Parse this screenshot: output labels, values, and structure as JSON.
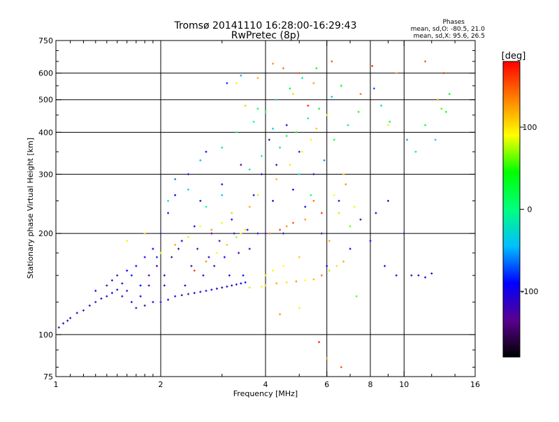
{
  "chart_data": {
    "type": "scatter",
    "title": "Tromsø 20141110 16:28:00-16:29:43",
    "subtitle": "RwPretec (8p)",
    "xlabel": "Frequency [MHz]",
    "ylabel": "Stationary phase Virtual Height [km]",
    "x_scale": "log",
    "y_scale": "log",
    "xlim": [
      1,
      16
    ],
    "ylim": [
      75,
      750
    ],
    "x_ticks": [
      1,
      2,
      4,
      6,
      8,
      10,
      16
    ],
    "x_tick_labels": [
      "1",
      "2",
      "4",
      "6",
      "8",
      "10",
      "16"
    ],
    "x_gridlines": [
      2,
      4,
      6,
      8,
      10
    ],
    "y_ticks": [
      75,
      100,
      200,
      300,
      400,
      500,
      600,
      750
    ],
    "y_tick_labels": [
      "75",
      "100",
      "200",
      "300",
      "400",
      "500",
      "600",
      "750"
    ],
    "y_gridlines": [
      100,
      200,
      300,
      400,
      500,
      600
    ],
    "grid": true,
    "stats": {
      "header": "Phases",
      "line_o": "mean, sd,O: -80.5, 21.0",
      "line_x": "mean, sd,X:  95.6, 26.5"
    },
    "colorbar": {
      "label": "[deg]",
      "range": [
        -180,
        180
      ],
      "ticks": [
        100,
        0,
        -100
      ],
      "tick_labels": [
        "100",
        "0",
        "-100"
      ],
      "colormap": "rainbow+black",
      "stops": [
        "#000000",
        "#5a0090",
        "#0000ff",
        "#00bfff",
        "#00ff80",
        "#00ff00",
        "#ffff00",
        "#ff8000",
        "#ff0000"
      ]
    },
    "series": [
      {
        "role": "O-trace (blue, lower band)",
        "points": [
          [
            1.02,
            105,
            -118
          ],
          [
            1.05,
            108,
            -112
          ],
          [
            1.08,
            110,
            -108
          ],
          [
            1.1,
            112,
            -105
          ],
          [
            1.15,
            116,
            -102
          ],
          [
            1.2,
            118,
            -110
          ],
          [
            1.25,
            122,
            -115
          ],
          [
            1.3,
            125,
            -118
          ],
          [
            1.35,
            128,
            -104
          ],
          [
            1.4,
            130,
            -120
          ],
          [
            1.45,
            133,
            -95
          ],
          [
            1.5,
            136,
            -112
          ],
          [
            1.45,
            145,
            -100
          ],
          [
            1.5,
            150,
            -125
          ],
          [
            1.55,
            142,
            -108
          ],
          [
            1.6,
            135,
            -118
          ],
          [
            1.6,
            155,
            -92
          ],
          [
            1.65,
            125,
            -110
          ],
          [
            1.7,
            120,
            -130
          ],
          [
            1.7,
            160,
            -100
          ],
          [
            1.75,
            140,
            -95
          ],
          [
            1.8,
            122,
            -115
          ],
          [
            1.8,
            170,
            -108
          ],
          [
            1.85,
            150,
            -122
          ],
          [
            1.9,
            125,
            -100
          ],
          [
            1.9,
            180,
            -90
          ],
          [
            1.95,
            160,
            -115
          ],
          [
            2.0,
            125,
            -105
          ],
          [
            2.0,
            200,
            -118
          ],
          [
            2.05,
            140,
            -112
          ],
          [
            2.1,
            127,
            -98
          ],
          [
            2.1,
            230,
            -110
          ],
          [
            2.15,
            170,
            -125
          ],
          [
            2.2,
            130,
            -108
          ],
          [
            2.2,
            260,
            -95
          ],
          [
            2.3,
            131,
            -115
          ],
          [
            2.3,
            190,
            -105
          ],
          [
            2.4,
            132,
            -120
          ],
          [
            2.4,
            300,
            -100
          ],
          [
            2.5,
            133,
            -110
          ],
          [
            2.5,
            210,
            -92
          ],
          [
            2.6,
            134,
            -118
          ],
          [
            2.6,
            250,
            -105
          ],
          [
            2.7,
            135,
            -112
          ],
          [
            2.7,
            350,
            -98
          ],
          [
            2.8,
            136,
            -108
          ],
          [
            2.8,
            200,
            -120
          ],
          [
            2.9,
            137,
            -102
          ],
          [
            3.0,
            138,
            -115
          ],
          [
            3.0,
            280,
            -110
          ],
          [
            3.1,
            139,
            -100
          ],
          [
            3.2,
            140,
            -118
          ],
          [
            3.2,
            220,
            -105
          ],
          [
            3.3,
            141,
            -112
          ],
          [
            3.4,
            142,
            -95
          ],
          [
            3.4,
            320,
            -120
          ],
          [
            3.5,
            143,
            -108
          ],
          [
            3.6,
            180,
            -110
          ],
          [
            3.7,
            260,
            -100
          ],
          [
            3.8,
            200,
            -115
          ],
          [
            3.9,
            300,
            -105
          ],
          [
            4.0,
            200,
            -95
          ],
          [
            4.1,
            380,
            -112
          ],
          [
            4.2,
            250,
            -100
          ],
          [
            4.3,
            320,
            -118
          ],
          [
            4.5,
            200,
            -105
          ],
          [
            4.6,
            420,
            -110
          ],
          [
            4.8,
            270,
            -98
          ],
          [
            5.0,
            350,
            -115
          ],
          [
            5.2,
            240,
            -100
          ],
          [
            5.5,
            300,
            -108
          ],
          [
            5.8,
            200,
            -120
          ],
          [
            6.0,
            160,
            -110
          ],
          [
            6.5,
            250,
            -105
          ],
          [
            7.0,
            180,
            -95
          ],
          [
            7.5,
            220,
            -115
          ],
          [
            8.0,
            190,
            -100
          ],
          [
            8.3,
            230,
            -110
          ],
          [
            8.8,
            160,
            -105
          ],
          [
            9.0,
            250,
            -118
          ],
          [
            9.5,
            150,
            -100
          ],
          [
            10.0,
            200,
            -112
          ],
          [
            10.5,
            150,
            -108
          ],
          [
            11.0,
            150,
            -115
          ],
          [
            11.5,
            148,
            -100
          ],
          [
            12.0,
            152,
            -110
          ],
          [
            1.3,
            135,
            -90
          ],
          [
            1.4,
            140,
            -130
          ],
          [
            1.55,
            130,
            -140
          ],
          [
            1.65,
            150,
            -85
          ],
          [
            1.75,
            130,
            -95
          ],
          [
            1.85,
            140,
            -135
          ],
          [
            1.95,
            170,
            -80
          ],
          [
            2.05,
            150,
            -95
          ],
          [
            2.25,
            180,
            -120
          ],
          [
            2.35,
            140,
            -88
          ],
          [
            2.45,
            160,
            -110
          ],
          [
            2.55,
            180,
            -130
          ],
          [
            2.65,
            150,
            -95
          ],
          [
            2.75,
            170,
            -105
          ],
          [
            2.85,
            160,
            -115
          ],
          [
            2.95,
            190,
            -125
          ],
          [
            3.05,
            170,
            -92
          ],
          [
            3.15,
            150,
            -100
          ],
          [
            3.25,
            200,
            -110
          ],
          [
            3.35,
            175,
            -120
          ],
          [
            3.45,
            150,
            -88
          ],
          [
            3.55,
            205,
            -105
          ]
        ]
      },
      {
        "role": "X-trace (warm colours, upper band)",
        "points": [
          [
            1.6,
            190,
            95
          ],
          [
            1.8,
            200,
            110
          ],
          [
            2.0,
            175,
            80
          ],
          [
            2.2,
            185,
            120
          ],
          [
            2.4,
            195,
            100
          ],
          [
            2.6,
            210,
            90
          ],
          [
            2.8,
            205,
            130
          ],
          [
            3.0,
            215,
            85
          ],
          [
            3.2,
            230,
            110
          ],
          [
            3.4,
            200,
            95
          ],
          [
            3.6,
            240,
            120
          ],
          [
            3.8,
            260,
            80
          ],
          [
            4.0,
            150,
            105
          ],
          [
            4.1,
            200,
            140
          ],
          [
            4.2,
            155,
            95
          ],
          [
            4.3,
            290,
            115
          ],
          [
            4.4,
            205,
            160
          ],
          [
            4.5,
            160,
            90
          ],
          [
            4.6,
            210,
            130
          ],
          [
            4.7,
            320,
            100
          ],
          [
            4.8,
            215,
            150
          ],
          [
            5.0,
            170,
            110
          ],
          [
            5.1,
            350,
            85
          ],
          [
            5.2,
            220,
            125
          ],
          [
            5.4,
            380,
            95
          ],
          [
            5.5,
            250,
            140
          ],
          [
            5.6,
            410,
            110
          ],
          [
            5.8,
            230,
            160
          ],
          [
            6.0,
            450,
            100
          ],
          [
            6.1,
            190,
            120
          ],
          [
            6.3,
            260,
            90
          ],
          [
            6.5,
            230,
            75
          ],
          [
            6.7,
            300,
            110
          ],
          [
            6.8,
            280,
            130
          ],
          [
            7.0,
            210,
            60
          ],
          [
            7.2,
            240,
            85
          ],
          [
            7.5,
            520,
            140
          ],
          [
            8.1,
            630,
            165
          ],
          [
            9.0,
            420,
            95
          ],
          [
            9.5,
            600,
            130
          ],
          [
            11.5,
            650,
            150
          ],
          [
            12.5,
            500,
            120
          ],
          [
            13.0,
            600,
            170
          ],
          [
            13.2,
            460,
            40
          ],
          [
            3.5,
            480,
            110
          ],
          [
            3.8,
            580,
            120
          ],
          [
            4.2,
            640,
            130
          ],
          [
            4.5,
            620,
            140
          ],
          [
            5.0,
            600,
            160
          ],
          [
            5.5,
            560,
            125
          ],
          [
            6.2,
            650,
            150
          ],
          [
            3.3,
            560,
            95
          ],
          [
            4.8,
            520,
            105
          ],
          [
            5.3,
            480,
            170
          ],
          [
            4.0,
            140,
            110
          ],
          [
            4.3,
            142,
            120
          ],
          [
            4.6,
            143,
            100
          ],
          [
            4.9,
            144,
            130
          ],
          [
            5.2,
            145,
            90
          ],
          [
            5.5,
            146,
            115
          ],
          [
            3.6,
            138,
            80
          ],
          [
            3.9,
            139,
            95
          ],
          [
            5.8,
            150,
            140
          ],
          [
            6.1,
            155,
            75
          ],
          [
            6.4,
            160,
            100
          ],
          [
            6.7,
            165,
            120
          ],
          [
            2.5,
            155,
            160
          ],
          [
            2.7,
            165,
            130
          ],
          [
            2.9,
            175,
            90
          ],
          [
            3.1,
            185,
            110
          ],
          [
            3.3,
            195,
            70
          ],
          [
            3.5,
            205,
            100
          ],
          [
            6.0,
            85,
            120
          ],
          [
            6.6,
            80,
            150
          ],
          [
            7.3,
            130,
            60
          ],
          [
            5.7,
            95,
            170
          ],
          [
            4.4,
            115,
            130
          ],
          [
            5.0,
            120,
            85
          ]
        ]
      },
      {
        "role": "scattered echoes (mixed phases)",
        "points": [
          [
            2.2,
            290,
            -60
          ],
          [
            2.6,
            330,
            -40
          ],
          [
            3.0,
            360,
            -20
          ],
          [
            3.3,
            400,
            10
          ],
          [
            3.7,
            430,
            -5
          ],
          [
            4.0,
            460,
            30
          ],
          [
            4.3,
            500,
            -30
          ],
          [
            4.7,
            540,
            20
          ],
          [
            5.1,
            580,
            -10
          ],
          [
            5.6,
            620,
            40
          ],
          [
            3.1,
            560,
            -80
          ],
          [
            3.4,
            590,
            -50
          ],
          [
            3.8,
            470,
            0
          ],
          [
            4.2,
            410,
            -35
          ],
          [
            4.6,
            390,
            15
          ],
          [
            5.0,
            300,
            -25
          ],
          [
            5.4,
            260,
            5
          ],
          [
            5.9,
            330,
            -55
          ],
          [
            6.3,
            380,
            25
          ],
          [
            6.9,
            420,
            -15
          ],
          [
            7.4,
            460,
            50
          ],
          [
            8.2,
            540,
            -70
          ],
          [
            8.6,
            480,
            -30
          ],
          [
            9.1,
            430,
            10
          ],
          [
            10.2,
            380,
            -50
          ],
          [
            10.8,
            350,
            -20
          ],
          [
            11.5,
            420,
            20
          ],
          [
            12.3,
            380,
            -40
          ],
          [
            12.8,
            470,
            60
          ],
          [
            13.5,
            520,
            30
          ],
          [
            2.1,
            250,
            -20
          ],
          [
            2.4,
            270,
            -30
          ],
          [
            2.7,
            240,
            0
          ],
          [
            3.0,
            260,
            -45
          ],
          [
            3.6,
            310,
            -15
          ],
          [
            3.9,
            340,
            10
          ],
          [
            4.4,
            360,
            -25
          ],
          [
            4.9,
            400,
            35
          ],
          [
            5.3,
            440,
            -5
          ],
          [
            5.7,
            470,
            20
          ],
          [
            6.2,
            510,
            -35
          ],
          [
            6.6,
            550,
            45
          ]
        ]
      }
    ]
  }
}
